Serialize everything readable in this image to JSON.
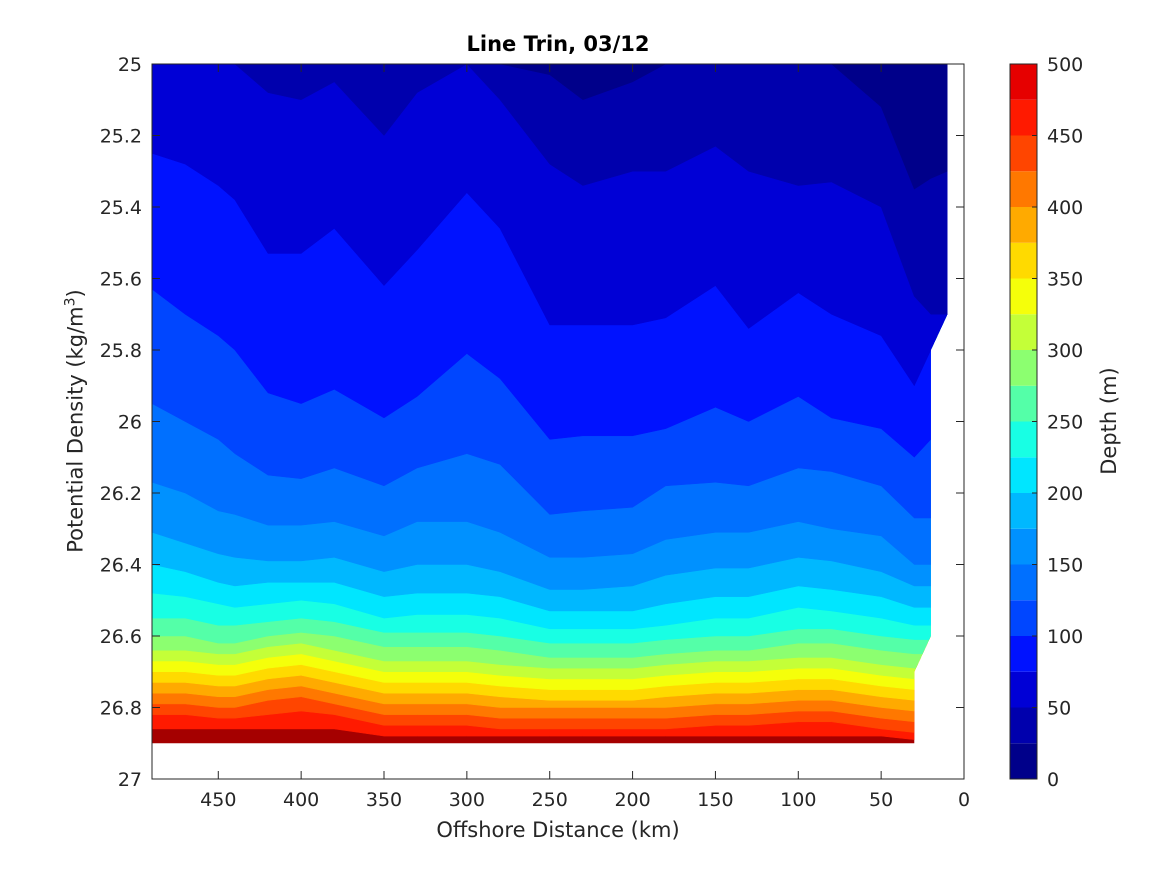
{
  "chart_data": {
    "type": "heatmap",
    "subtype": "filled-contour",
    "title": "Line Trin, 03/12",
    "xlabel": "Offshore Distance (km)",
    "ylabel_text": "Potential Density (kg/m",
    "ylabel_sup": "3",
    "ylabel_close": ")",
    "colorbar_label": "Depth (m)",
    "xlim": [
      490,
      0
    ],
    "x_reversed": true,
    "ylim": [
      25,
      27
    ],
    "y_reversed": true,
    "xticks": [
      450,
      400,
      350,
      300,
      250,
      200,
      150,
      100,
      50,
      0
    ],
    "yticks": [
      25,
      25.2,
      25.4,
      25.6,
      25.8,
      26,
      26.2,
      26.4,
      26.6,
      26.8,
      27
    ],
    "ytick_labels": [
      "25",
      "25.2",
      "25.4",
      "25.6",
      "25.8",
      "26",
      "26.2",
      "26.4",
      "26.6",
      "26.8",
      "27"
    ],
    "colorbar_ticks": [
      0,
      50,
      100,
      150,
      200,
      250,
      300,
      350,
      400,
      450,
      500
    ],
    "contour_levels": [
      0,
      25,
      50,
      75,
      100,
      125,
      150,
      175,
      200,
      225,
      250,
      275,
      300,
      325,
      350,
      375,
      400,
      425,
      450,
      475,
      500
    ],
    "colormap": [
      "#00008a",
      "#0000ad",
      "#0000d6",
      "#0012ff",
      "#0046ff",
      "#0070ff",
      "#0091ff",
      "#00b8ff",
      "#00e6ff",
      "#18ffe4",
      "#54ffa8",
      "#8cff70",
      "#c4ff38",
      "#f5ff0a",
      "#ffda00",
      "#ffaa00",
      "#ff7800",
      "#ff4500",
      "#ff1a00",
      "#e60000",
      "#a50000"
    ],
    "x": [
      490,
      470,
      450,
      440,
      420,
      400,
      380,
      350,
      330,
      300,
      280,
      250,
      230,
      200,
      180,
      150,
      130,
      100,
      80,
      50,
      30,
      20,
      10
    ],
    "isopycnals": [
      {
        "depth": 25,
        "y": [
          25.0,
          25.0,
          25.0,
          25.0,
          25.0,
          25.0,
          25.0,
          25.0,
          25.0,
          25.0,
          25.0,
          25.03,
          25.1,
          25.05,
          25.0,
          25.0,
          25.0,
          25.0,
          25.0,
          25.12,
          25.35,
          25.32,
          25.3
        ]
      },
      {
        "depth": 50,
        "y": [
          25.0,
          25.0,
          25.0,
          25.0,
          25.08,
          25.1,
          25.05,
          25.2,
          25.08,
          25.0,
          25.1,
          25.28,
          25.34,
          25.3,
          25.3,
          25.23,
          25.3,
          25.34,
          25.33,
          25.4,
          25.65,
          25.7,
          25.7
        ]
      },
      {
        "depth": 75,
        "y": [
          25.25,
          25.28,
          25.34,
          25.38,
          25.53,
          25.53,
          25.46,
          25.62,
          25.52,
          25.36,
          25.46,
          25.73,
          25.73,
          25.73,
          25.71,
          25.62,
          25.74,
          25.64,
          25.7,
          25.76,
          25.9,
          25.8,
          25.75
        ]
      },
      {
        "depth": 100,
        "y": [
          25.63,
          25.7,
          25.76,
          25.8,
          25.92,
          25.95,
          25.91,
          25.99,
          25.93,
          25.81,
          25.88,
          26.05,
          26.04,
          26.04,
          26.02,
          25.96,
          26.0,
          25.93,
          25.99,
          26.02,
          26.1,
          26.05,
          26.05
        ]
      },
      {
        "depth": 125,
        "y": [
          25.95,
          26.0,
          26.05,
          26.09,
          26.15,
          26.16,
          26.13,
          26.18,
          26.13,
          26.09,
          26.12,
          26.26,
          26.25,
          26.24,
          26.18,
          26.17,
          26.18,
          26.13,
          26.14,
          26.18,
          26.27,
          26.27,
          26.27
        ]
      },
      {
        "depth": 150,
        "y": [
          26.17,
          26.2,
          26.25,
          26.26,
          26.29,
          26.29,
          26.28,
          26.32,
          26.28,
          26.28,
          26.31,
          26.38,
          26.38,
          26.37,
          26.33,
          26.31,
          26.31,
          26.28,
          26.3,
          26.32,
          26.4,
          26.4,
          26.4
        ]
      },
      {
        "depth": 175,
        "y": [
          26.31,
          26.34,
          26.37,
          26.38,
          26.39,
          26.39,
          26.38,
          26.42,
          26.4,
          26.4,
          26.42,
          26.47,
          26.47,
          26.46,
          26.43,
          26.41,
          26.41,
          26.38,
          26.39,
          26.42,
          26.46,
          26.46,
          26.46
        ]
      },
      {
        "depth": 200,
        "y": [
          26.4,
          26.42,
          26.45,
          26.46,
          26.45,
          26.45,
          26.45,
          26.49,
          26.48,
          26.48,
          26.49,
          26.53,
          26.53,
          26.53,
          26.51,
          26.49,
          26.49,
          26.46,
          26.47,
          26.49,
          26.52,
          26.52,
          26.52
        ]
      },
      {
        "depth": 225,
        "y": [
          26.48,
          26.49,
          26.51,
          26.52,
          26.51,
          26.5,
          26.51,
          26.55,
          26.54,
          26.54,
          26.55,
          26.58,
          26.58,
          26.58,
          26.57,
          26.55,
          26.55,
          26.52,
          26.53,
          26.55,
          26.57,
          26.57,
          26.57
        ]
      },
      {
        "depth": 250,
        "y": [
          26.55,
          26.55,
          26.57,
          26.57,
          26.56,
          26.55,
          26.56,
          26.59,
          26.59,
          26.59,
          26.6,
          26.62,
          26.62,
          26.62,
          26.61,
          26.6,
          26.6,
          26.58,
          26.58,
          26.6,
          26.61,
          26.61,
          26.61
        ]
      },
      {
        "depth": 275,
        "y": [
          26.6,
          26.6,
          26.62,
          26.62,
          26.6,
          26.59,
          26.6,
          26.63,
          26.63,
          26.63,
          26.64,
          26.66,
          26.66,
          26.66,
          26.65,
          26.64,
          26.64,
          26.62,
          26.62,
          26.64,
          26.65,
          26.65,
          26.65
        ]
      },
      {
        "depth": 300,
        "y": [
          26.64,
          26.64,
          26.65,
          26.65,
          26.63,
          26.62,
          26.64,
          26.67,
          26.67,
          26.67,
          26.68,
          26.69,
          26.69,
          26.69,
          26.68,
          26.67,
          26.67,
          26.66,
          26.66,
          26.68,
          26.69,
          26.69,
          26.69
        ]
      },
      {
        "depth": 325,
        "y": [
          26.67,
          26.67,
          26.68,
          26.68,
          26.66,
          26.65,
          26.67,
          26.7,
          26.7,
          26.7,
          26.71,
          26.72,
          26.72,
          26.72,
          26.71,
          26.7,
          26.7,
          26.69,
          26.69,
          26.71,
          26.72,
          26.72,
          26.72
        ]
      },
      {
        "depth": 350,
        "y": [
          26.7,
          26.7,
          26.71,
          26.71,
          26.69,
          26.68,
          26.7,
          26.73,
          26.73,
          26.73,
          26.74,
          26.75,
          26.75,
          26.75,
          26.74,
          26.73,
          26.73,
          26.72,
          26.72,
          26.74,
          26.75,
          26.75,
          26.75
        ]
      },
      {
        "depth": 375,
        "y": [
          26.73,
          26.73,
          26.74,
          26.74,
          26.72,
          26.71,
          26.73,
          26.76,
          26.76,
          26.76,
          26.77,
          26.78,
          26.78,
          26.78,
          26.77,
          26.76,
          26.76,
          26.75,
          26.75,
          26.77,
          26.78,
          26.78,
          26.78
        ]
      },
      {
        "depth": 400,
        "y": [
          26.76,
          26.76,
          26.77,
          26.77,
          26.75,
          26.74,
          26.76,
          26.79,
          26.79,
          26.79,
          26.8,
          26.8,
          26.8,
          26.8,
          26.8,
          26.79,
          26.79,
          26.78,
          26.78,
          26.8,
          26.81,
          26.81,
          26.81
        ]
      },
      {
        "depth": 425,
        "y": [
          26.79,
          26.79,
          26.8,
          26.8,
          26.78,
          26.77,
          26.79,
          26.82,
          26.82,
          26.82,
          26.83,
          26.83,
          26.83,
          26.83,
          26.83,
          26.82,
          26.82,
          26.81,
          26.81,
          26.83,
          26.84,
          26.84,
          26.84
        ]
      },
      {
        "depth": 450,
        "y": [
          26.82,
          26.82,
          26.83,
          26.83,
          26.82,
          26.81,
          26.82,
          26.85,
          26.85,
          26.85,
          26.86,
          26.86,
          26.86,
          26.86,
          26.86,
          26.85,
          26.85,
          26.84,
          26.84,
          26.86,
          26.87,
          26.87,
          26.87
        ]
      },
      {
        "depth": 475,
        "y": [
          26.86,
          26.86,
          26.86,
          26.86,
          26.86,
          26.86,
          26.86,
          26.88,
          26.88,
          26.88,
          26.88,
          26.88,
          26.88,
          26.88,
          26.88,
          26.88,
          26.88,
          26.88,
          26.88,
          26.88,
          26.89,
          26.89,
          26.89
        ]
      }
    ],
    "data_boundary": {
      "top": 25,
      "bottom": 26.9,
      "right_edge": [
        [
          10,
          25
        ],
        [
          10,
          25.7
        ],
        [
          20,
          25.8
        ],
        [
          20,
          26.6
        ],
        [
          30,
          26.7
        ],
        [
          30,
          26.9
        ]
      ],
      "gap_bottom": [
        [
          440,
          26.9
        ],
        [
          430,
          26.8
        ],
        [
          400,
          26.8
        ],
        [
          390,
          26.9
        ]
      ]
    }
  }
}
